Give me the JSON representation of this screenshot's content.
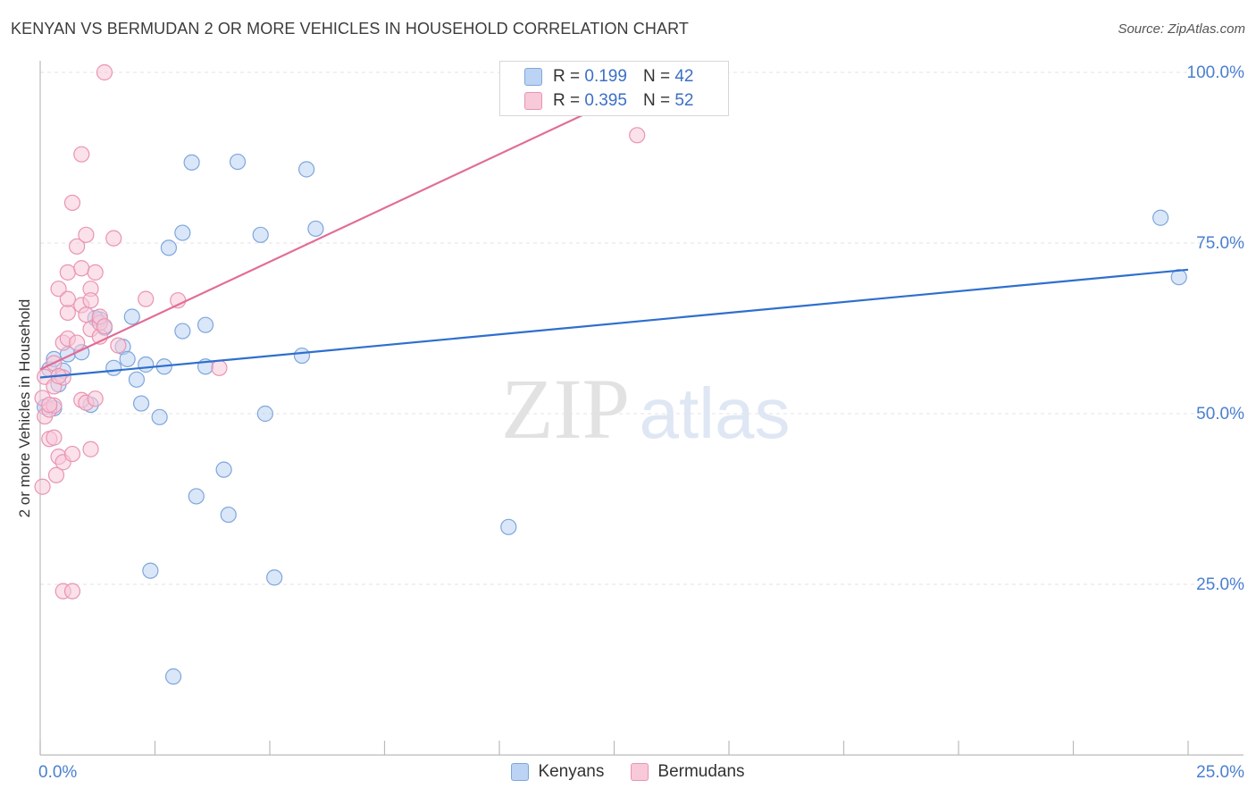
{
  "title": "KENYAN VS BERMUDAN 2 OR MORE VEHICLES IN HOUSEHOLD CORRELATION CHART",
  "source": "Source: ZipAtlas.com",
  "watermark": {
    "zip": "ZIP",
    "atlas": "atlas"
  },
  "stats": [
    {
      "r_label": "R =",
      "r_value": "0.199",
      "n_label": "N =",
      "n_value": "42"
    },
    {
      "r_label": "R =",
      "r_value": "0.395",
      "n_label": "N =",
      "n_value": "52"
    }
  ],
  "colors": {
    "kenyan_fill": "#bcd3f3",
    "kenyan_stroke": "#7ea6dd",
    "kenyan_line": "#2f6fce",
    "bermudan_fill": "#f8c9d8",
    "bermudan_stroke": "#e994b2",
    "bermudan_line": "#e26c97",
    "tick_label": "#4a7fd0",
    "grid": "#e3e3e3"
  },
  "chart_data": {
    "type": "scatter",
    "title": "KENYAN VS BERMUDAN 2 OR MORE VEHICLES IN HOUSEHOLD CORRELATION CHART",
    "xlabel": "",
    "ylabel": "2 or more Vehicles in Household",
    "xlim": [
      0,
      25
    ],
    "ylim": [
      0,
      102
    ],
    "x_tick_labels": [
      "0.0%",
      "25.0%"
    ],
    "y_ticks": [
      25,
      50,
      75,
      100
    ],
    "y_tick_labels": [
      "25.0%",
      "50.0%",
      "75.0%",
      "100.0%"
    ],
    "legend": [
      "Kenyans",
      "Bermudans"
    ],
    "series": [
      {
        "name": "Kenyans",
        "trend": {
          "x": [
            0,
            25
          ],
          "y": [
            55.3,
            71.1
          ]
        },
        "points": [
          [
            0.1,
            51.0
          ],
          [
            0.2,
            56.5
          ],
          [
            0.3,
            58.0
          ],
          [
            0.4,
            54.3
          ],
          [
            0.5,
            56.3
          ],
          [
            0.6,
            58.7
          ],
          [
            0.9,
            59.0
          ],
          [
            1.1,
            51.3
          ],
          [
            1.3,
            63.8
          ],
          [
            1.4,
            62.6
          ],
          [
            1.6,
            56.7
          ],
          [
            1.8,
            59.8
          ],
          [
            1.9,
            58.0
          ],
          [
            2.0,
            64.2
          ],
          [
            2.1,
            55.0
          ],
          [
            2.2,
            51.5
          ],
          [
            2.3,
            57.2
          ],
          [
            2.4,
            27.0
          ],
          [
            2.6,
            49.5
          ],
          [
            2.7,
            56.9
          ],
          [
            2.8,
            74.3
          ],
          [
            2.9,
            11.5
          ],
          [
            3.1,
            62.1
          ],
          [
            3.1,
            76.5
          ],
          [
            3.3,
            86.8
          ],
          [
            3.4,
            37.9
          ],
          [
            3.6,
            56.9
          ],
          [
            3.6,
            63.0
          ],
          [
            4.0,
            41.8
          ],
          [
            4.1,
            35.2
          ],
          [
            4.3,
            86.9
          ],
          [
            4.8,
            76.2
          ],
          [
            4.9,
            50.0
          ],
          [
            5.1,
            26.0
          ],
          [
            5.7,
            58.5
          ],
          [
            5.8,
            85.8
          ],
          [
            6.0,
            77.1
          ],
          [
            10.2,
            33.4
          ],
          [
            24.4,
            78.7
          ],
          [
            24.8,
            70.0
          ],
          [
            0.3,
            50.8
          ],
          [
            1.2,
            64.0
          ]
        ]
      },
      {
        "name": "Bermudans",
        "trend": {
          "x": [
            0,
            13.8
          ],
          "y": [
            56.5,
            100.0
          ]
        },
        "points": [
          [
            0.05,
            39.3
          ],
          [
            0.05,
            52.3
          ],
          [
            0.1,
            49.6
          ],
          [
            0.1,
            55.4
          ],
          [
            0.2,
            46.3
          ],
          [
            0.2,
            50.6
          ],
          [
            0.3,
            51.2
          ],
          [
            0.3,
            54.0
          ],
          [
            0.3,
            57.4
          ],
          [
            0.35,
            41.0
          ],
          [
            0.4,
            43.7
          ],
          [
            0.4,
            68.3
          ],
          [
            0.5,
            42.9
          ],
          [
            0.5,
            55.3
          ],
          [
            0.5,
            60.4
          ],
          [
            0.5,
            24.0
          ],
          [
            0.6,
            61.0
          ],
          [
            0.6,
            70.7
          ],
          [
            0.6,
            64.8
          ],
          [
            0.6,
            66.8
          ],
          [
            0.7,
            80.9
          ],
          [
            0.7,
            24.0
          ],
          [
            0.7,
            44.1
          ],
          [
            0.8,
            60.4
          ],
          [
            0.8,
            74.5
          ],
          [
            0.9,
            88.0
          ],
          [
            0.9,
            65.9
          ],
          [
            0.9,
            71.3
          ],
          [
            0.9,
            52.0
          ],
          [
            1.0,
            76.2
          ],
          [
            1.0,
            51.6
          ],
          [
            1.0,
            64.5
          ],
          [
            1.1,
            68.3
          ],
          [
            1.1,
            62.4
          ],
          [
            1.1,
            66.6
          ],
          [
            1.1,
            44.8
          ],
          [
            1.2,
            70.7
          ],
          [
            1.2,
            52.2
          ],
          [
            1.3,
            61.3
          ],
          [
            1.3,
            63.3
          ],
          [
            1.4,
            100.0
          ],
          [
            1.6,
            75.7
          ],
          [
            1.7,
            60.0
          ],
          [
            2.3,
            66.8
          ],
          [
            3.0,
            66.6
          ],
          [
            3.9,
            56.7
          ],
          [
            13.0,
            90.8
          ],
          [
            0.3,
            46.5
          ],
          [
            0.4,
            55.5
          ],
          [
            0.2,
            51.3
          ],
          [
            1.3,
            64.2
          ],
          [
            1.4,
            62.8
          ]
        ]
      }
    ]
  }
}
